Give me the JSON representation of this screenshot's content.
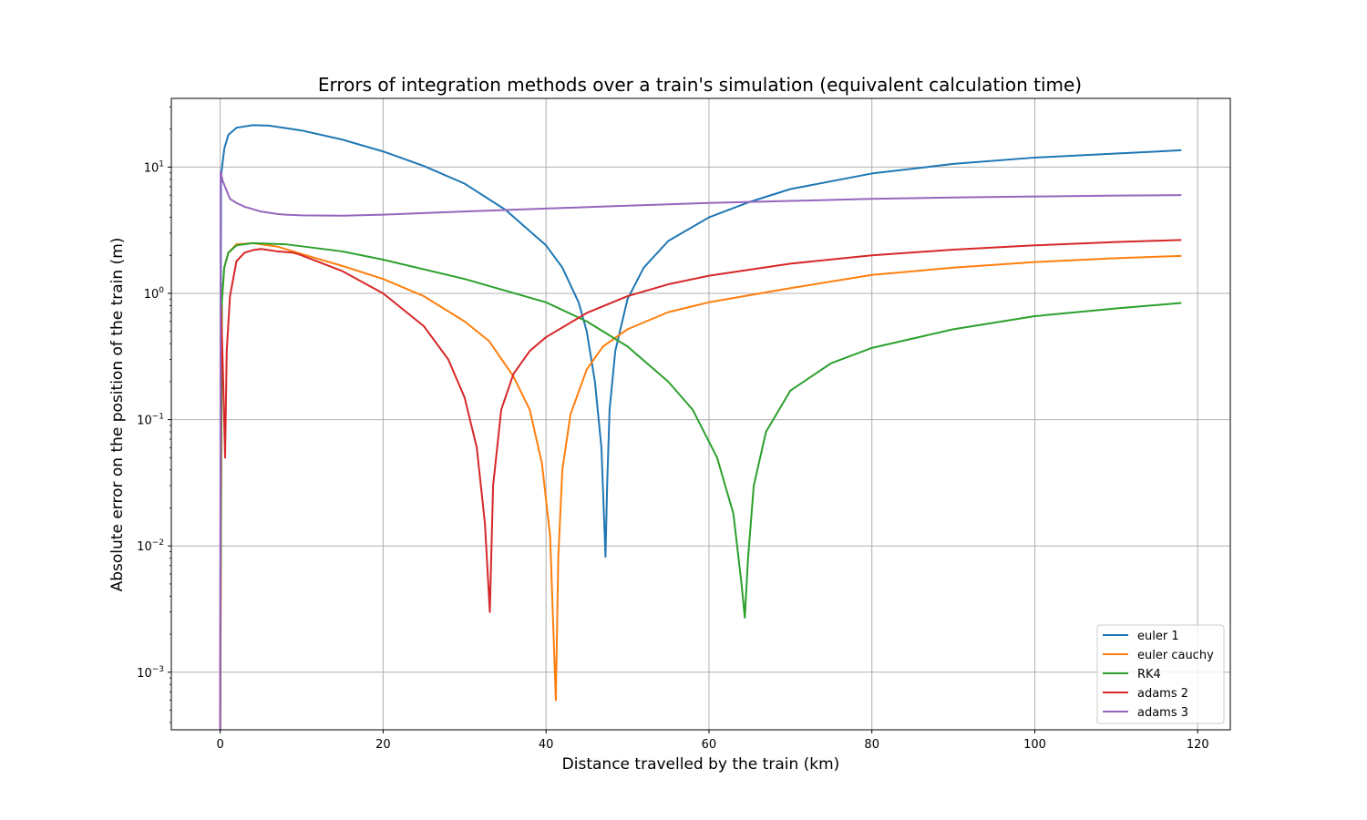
{
  "chart_data": {
    "type": "line",
    "title": "Errors of integration methods over a train's simulation (equivalent calculation time)",
    "xlabel": "Distance travelled by the train (km)",
    "ylabel": "Absolute error on the position of the train (m)",
    "xlim": [
      -6,
      124
    ],
    "ylim": [
      0.00035,
      35
    ],
    "yscale": "log",
    "x_ticks": [
      0,
      20,
      40,
      60,
      80,
      100,
      120
    ],
    "y_ticks": [
      0.001,
      0.01,
      0.1,
      1,
      10
    ],
    "y_tick_labels": [
      {
        "base": "10",
        "exp": "−3"
      },
      {
        "base": "10",
        "exp": "−2"
      },
      {
        "base": "10",
        "exp": "−1"
      },
      {
        "base": "10",
        "exp": "0"
      },
      {
        "base": "10",
        "exp": "1"
      }
    ],
    "grid": true,
    "legend_position": "lower-right",
    "series": [
      {
        "name": "euler 1",
        "color": "#1f77b4",
        "points": [
          [
            0,
            0.00035
          ],
          [
            0.1,
            8.5
          ],
          [
            0.5,
            14
          ],
          [
            1,
            18
          ],
          [
            2,
            20.5
          ],
          [
            4,
            21.5
          ],
          [
            6,
            21.3
          ],
          [
            10,
            19.5
          ],
          [
            15,
            16.5
          ],
          [
            20,
            13.3
          ],
          [
            25,
            10.2
          ],
          [
            30,
            7.4
          ],
          [
            35,
            4.6
          ],
          [
            40,
            2.4
          ],
          [
            42,
            1.6
          ],
          [
            44,
            0.85
          ],
          [
            45,
            0.5
          ],
          [
            46,
            0.2
          ],
          [
            46.8,
            0.06
          ],
          [
            47.3,
            0.0082
          ],
          [
            47.5,
            0.03
          ],
          [
            47.8,
            0.12
          ],
          [
            48.5,
            0.35
          ],
          [
            50,
            0.9
          ],
          [
            52,
            1.6
          ],
          [
            55,
            2.6
          ],
          [
            60,
            4.0
          ],
          [
            65,
            5.3
          ],
          [
            70,
            6.7
          ],
          [
            80,
            8.9
          ],
          [
            90,
            10.6
          ],
          [
            100,
            11.9
          ],
          [
            110,
            12.8
          ],
          [
            118,
            13.6
          ]
        ]
      },
      {
        "name": "euler cauchy",
        "color": "#ff7f0e",
        "points": [
          [
            0,
            0.00035
          ],
          [
            0.2,
            0.9
          ],
          [
            0.5,
            1.6
          ],
          [
            1,
            2.1
          ],
          [
            2,
            2.45
          ],
          [
            4,
            2.5
          ],
          [
            7,
            2.35
          ],
          [
            10,
            2.05
          ],
          [
            15,
            1.65
          ],
          [
            20,
            1.3
          ],
          [
            25,
            0.95
          ],
          [
            30,
            0.6
          ],
          [
            33,
            0.42
          ],
          [
            36,
            0.22
          ],
          [
            38,
            0.12
          ],
          [
            39.5,
            0.045
          ],
          [
            40.5,
            0.012
          ],
          [
            41.2,
            0.0006
          ],
          [
            41.5,
            0.008
          ],
          [
            42,
            0.04
          ],
          [
            43,
            0.11
          ],
          [
            45,
            0.25
          ],
          [
            47,
            0.38
          ],
          [
            50,
            0.52
          ],
          [
            55,
            0.71
          ],
          [
            60,
            0.85
          ],
          [
            70,
            1.1
          ],
          [
            80,
            1.4
          ],
          [
            90,
            1.6
          ],
          [
            100,
            1.77
          ],
          [
            110,
            1.9
          ],
          [
            118,
            1.98
          ]
        ]
      },
      {
        "name": "RK4",
        "color": "#2ca02c",
        "points": [
          [
            0,
            0.00035
          ],
          [
            0.2,
            0.85
          ],
          [
            0.5,
            1.6
          ],
          [
            1,
            2.1
          ],
          [
            2,
            2.4
          ],
          [
            4,
            2.5
          ],
          [
            8,
            2.45
          ],
          [
            15,
            2.15
          ],
          [
            20,
            1.85
          ],
          [
            30,
            1.3
          ],
          [
            40,
            0.85
          ],
          [
            45,
            0.6
          ],
          [
            50,
            0.38
          ],
          [
            55,
            0.2
          ],
          [
            58,
            0.12
          ],
          [
            61,
            0.05
          ],
          [
            63,
            0.018
          ],
          [
            64,
            0.005
          ],
          [
            64.4,
            0.0027
          ],
          [
            64.8,
            0.008
          ],
          [
            65.5,
            0.03
          ],
          [
            67,
            0.08
          ],
          [
            70,
            0.17
          ],
          [
            75,
            0.28
          ],
          [
            80,
            0.37
          ],
          [
            90,
            0.52
          ],
          [
            100,
            0.66
          ],
          [
            110,
            0.76
          ],
          [
            118,
            0.84
          ]
        ]
      },
      {
        "name": "adams 2",
        "color": "#d62728",
        "points": [
          [
            0,
            0.00035
          ],
          [
            0.1,
            0.8
          ],
          [
            0.3,
            0.3
          ],
          [
            0.6,
            0.05
          ],
          [
            0.8,
            0.35
          ],
          [
            1.2,
            0.95
          ],
          [
            2,
            1.8
          ],
          [
            3,
            2.1
          ],
          [
            4,
            2.2
          ],
          [
            5,
            2.25
          ],
          [
            6,
            2.2
          ],
          [
            7,
            2.15
          ],
          [
            9,
            2.1
          ],
          [
            10,
            2.0
          ],
          [
            15,
            1.5
          ],
          [
            20,
            1.0
          ],
          [
            25,
            0.55
          ],
          [
            28,
            0.3
          ],
          [
            30,
            0.15
          ],
          [
            31.5,
            0.06
          ],
          [
            32.5,
            0.015
          ],
          [
            33.1,
            0.003
          ],
          [
            33.5,
            0.03
          ],
          [
            34.5,
            0.12
          ],
          [
            36,
            0.23
          ],
          [
            38,
            0.35
          ],
          [
            40,
            0.45
          ],
          [
            45,
            0.7
          ],
          [
            50,
            0.95
          ],
          [
            55,
            1.18
          ],
          [
            60,
            1.38
          ],
          [
            70,
            1.72
          ],
          [
            80,
            2.0
          ],
          [
            90,
            2.22
          ],
          [
            100,
            2.4
          ],
          [
            110,
            2.55
          ],
          [
            118,
            2.65
          ]
        ]
      },
      {
        "name": "adams 3",
        "color": "#9467bd",
        "points": [
          [
            0,
            0.00035
          ],
          [
            0.05,
            9.2
          ],
          [
            0.3,
            7.8
          ],
          [
            0.8,
            6.5
          ],
          [
            1.2,
            5.6
          ],
          [
            2,
            5.2
          ],
          [
            3,
            4.85
          ],
          [
            5,
            4.45
          ],
          [
            6,
            4.35
          ],
          [
            7,
            4.25
          ],
          [
            8,
            4.2
          ],
          [
            10,
            4.15
          ],
          [
            15,
            4.12
          ],
          [
            20,
            4.2
          ],
          [
            30,
            4.45
          ],
          [
            40,
            4.7
          ],
          [
            50,
            4.95
          ],
          [
            60,
            5.2
          ],
          [
            70,
            5.4
          ],
          [
            80,
            5.6
          ],
          [
            90,
            5.75
          ],
          [
            100,
            5.85
          ],
          [
            110,
            5.95
          ],
          [
            118,
            6.0
          ]
        ]
      }
    ]
  }
}
